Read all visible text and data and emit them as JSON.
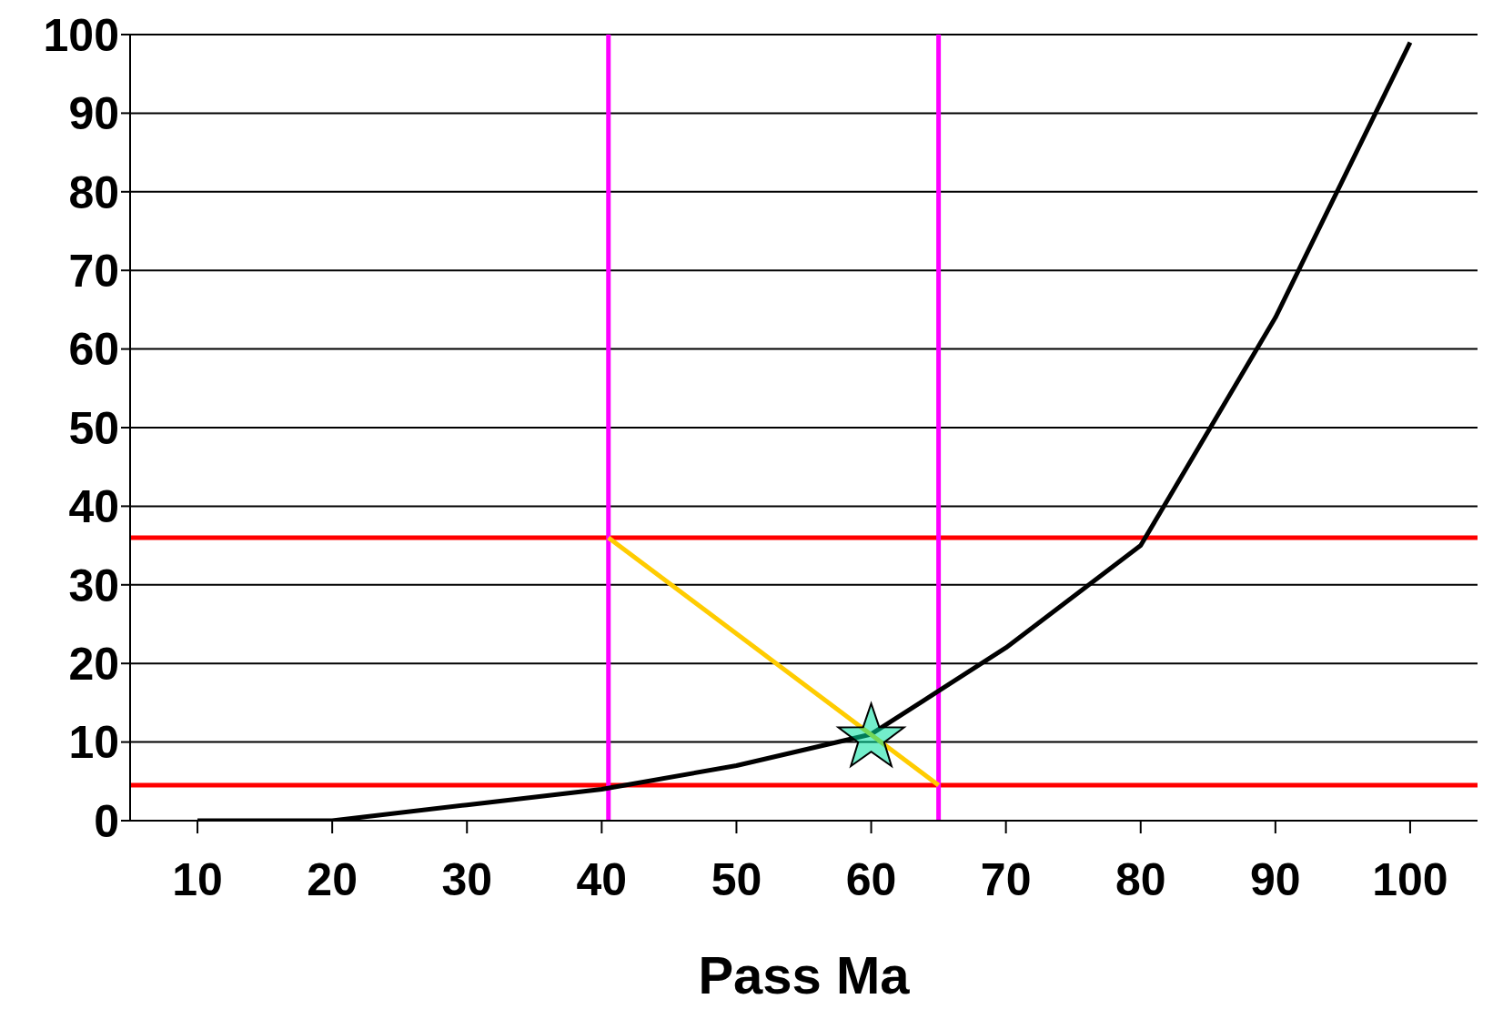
{
  "chart_data": {
    "type": "line",
    "xlabel": "Pass Ma",
    "x": [
      10,
      20,
      30,
      40,
      50,
      60,
      70,
      80,
      90,
      100
    ],
    "xlim": [
      5,
      105
    ],
    "xticks": [
      10,
      20,
      30,
      40,
      50,
      60,
      70,
      80,
      90,
      100
    ],
    "ylim": [
      0,
      100
    ],
    "yticks": [
      0,
      10,
      20,
      30,
      40,
      50,
      60,
      70,
      80,
      90,
      100
    ],
    "grid": "y",
    "series": [
      {
        "color": "#000000",
        "values": [
          0,
          0,
          2,
          4,
          7,
          11,
          22,
          35,
          64,
          99
        ]
      },
      {
        "type": "line",
        "color": "#ffcc00",
        "x": [
          40.5,
          65
        ],
        "values": [
          36,
          4.5
        ]
      },
      {
        "type": "scatter",
        "marker": "star",
        "color": "#00e0a0",
        "x": [
          60
        ],
        "values": [
          10.5
        ]
      }
    ],
    "ref_lines": [
      {
        "axis": "y",
        "value": 36,
        "color": "#ff0000"
      },
      {
        "axis": "y",
        "value": 4.5,
        "color": "#ff0000"
      },
      {
        "axis": "x",
        "value": 40.5,
        "color": "#ff00ff"
      },
      {
        "axis": "x",
        "value": 65,
        "color": "#ff00ff"
      }
    ]
  }
}
